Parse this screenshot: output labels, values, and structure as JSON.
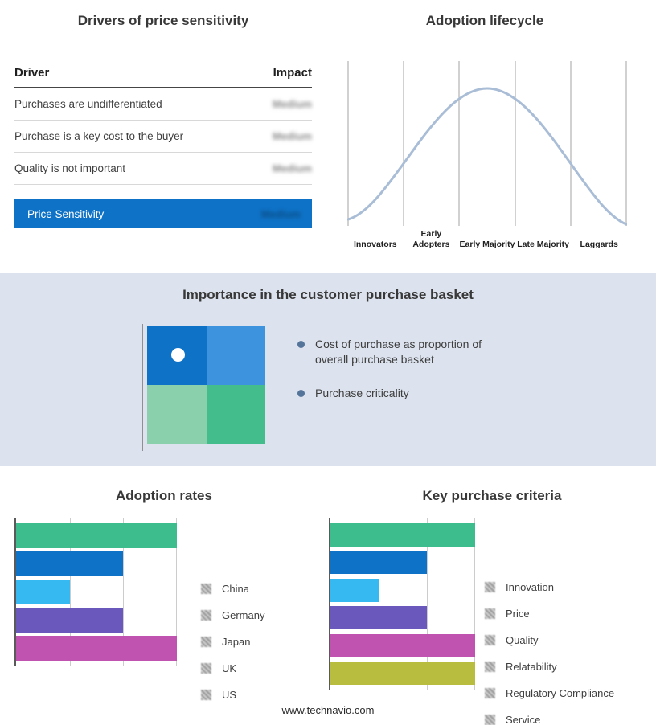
{
  "footer": {
    "url_text": "www.technavio.com"
  },
  "colors": {
    "highlight_blue": "#0e72c6",
    "band_background": "#dce3ee",
    "curve_stroke": "#a9bdd6",
    "bullet_dot": "#54749a"
  },
  "drivers_panel": {
    "title": "Drivers of price sensitivity",
    "columns": {
      "driver": "Driver",
      "impact": "Impact"
    },
    "rows": [
      {
        "driver": "Purchases are undifferentiated",
        "impact": "Medium"
      },
      {
        "driver": "Purchase is a key cost to the buyer",
        "impact": "Medium"
      },
      {
        "driver": "Quality is not important",
        "impact": "Medium"
      }
    ],
    "highlight": {
      "driver": "Price Sensitivity",
      "impact": "Medium"
    }
  },
  "basket_panel": {
    "title": "Importance in the customer purchase basket",
    "bullets": [
      "Cost of purchase as proportion of overall purchase basket",
      "Purchase criticality"
    ],
    "quadrant_colors": {
      "top_left": "#0e72c6",
      "top_right": "#3e93de",
      "bottom_left": "#8bd0ad",
      "bottom_right": "#43bd8b"
    }
  },
  "chart_data": [
    {
      "id": "adoption-lifecycle",
      "type": "line",
      "title": "Adoption lifecycle",
      "curve": "bell-shaped normal-distribution adoption curve, unlabeled axes",
      "stages": [
        "Innovators",
        "Early Adopters",
        "Early Majority",
        "Late Majority",
        "Laggards"
      ],
      "grid": "vertical stage-divider lines, legend none"
    },
    {
      "id": "adoption-rates",
      "type": "bar",
      "orientation": "horizontal",
      "title": "Adoption rates",
      "categories": [
        "China",
        "Germany",
        "Japan",
        "UK",
        "US"
      ],
      "values": [
        3,
        2,
        1,
        2,
        3
      ],
      "colors": [
        "#3dbd8e",
        "#0e72c6",
        "#36b9f0",
        "#6a58bd",
        "#c052b0"
      ],
      "xlim": [
        0,
        3
      ],
      "legend_position": "right"
    },
    {
      "id": "key-purchase-criteria",
      "type": "bar",
      "orientation": "horizontal",
      "title": "Key purchase criteria",
      "categories": [
        "Innovation",
        "Price",
        "Quality",
        "Relatability",
        "Regulatory Compliance",
        "Service"
      ],
      "values": [
        3,
        2,
        1,
        2,
        3,
        3
      ],
      "colors": [
        "#3dbd8e",
        "#0e72c6",
        "#36b9f0",
        "#6a58bd",
        "#c052b0",
        "#b8bc3f"
      ],
      "xlim": [
        0,
        3
      ],
      "legend_position": "right"
    }
  ]
}
